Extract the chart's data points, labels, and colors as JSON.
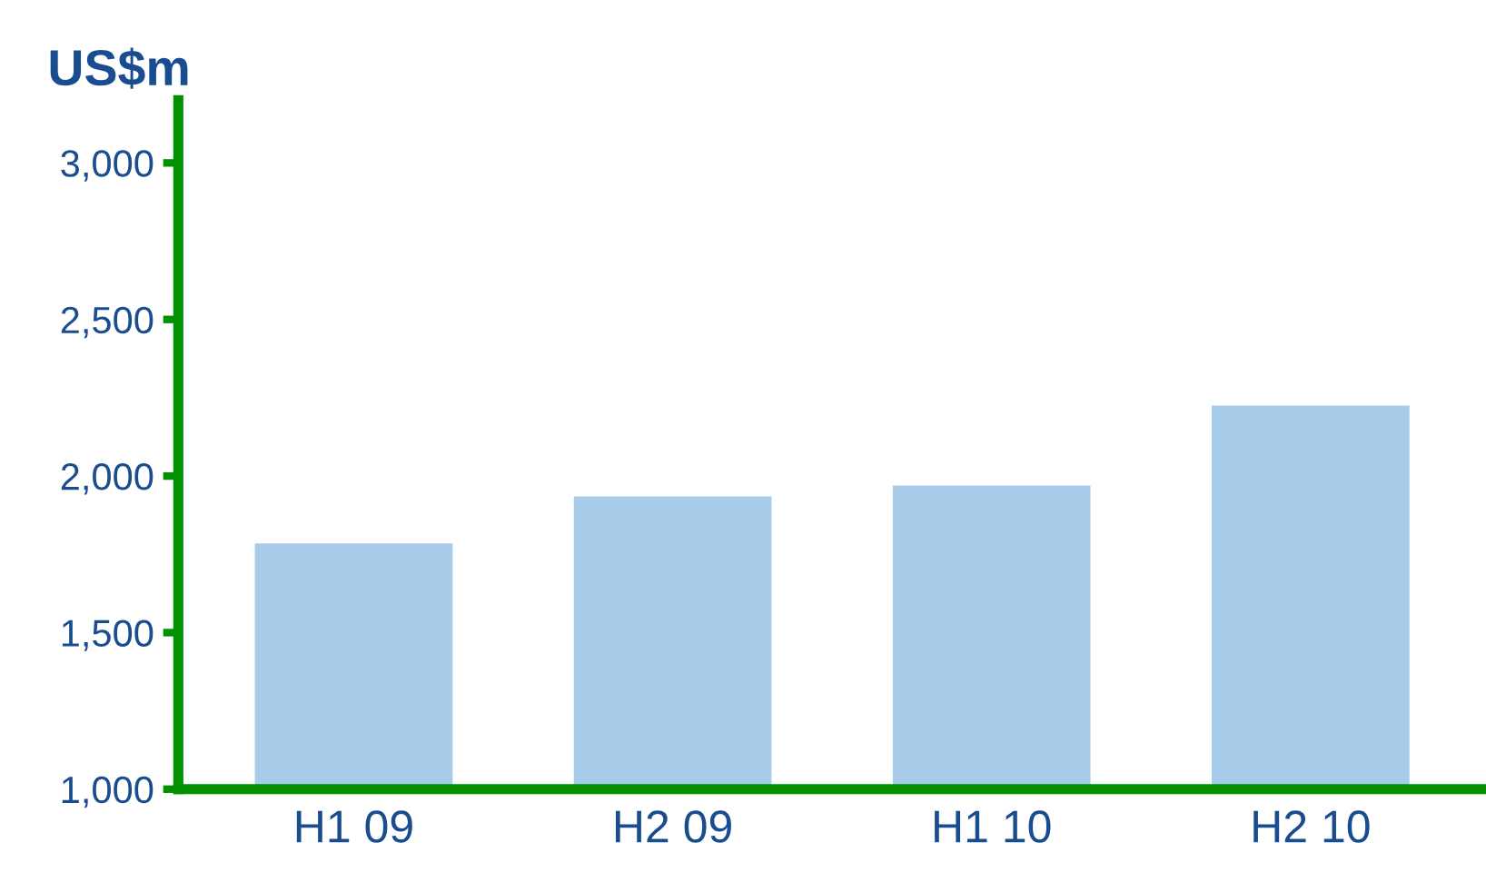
{
  "chart_data": {
    "type": "bar",
    "ylabel": "US$m",
    "categories": [
      "H1 09",
      "H2 09",
      "H1 10",
      "H2 10"
    ],
    "values": [
      1785,
      1935,
      1970,
      2225
    ],
    "color": "#a8cbea",
    "ylim": [
      1000,
      3200
    ],
    "yticks": [
      {
        "value": 1000,
        "label": "1,000"
      },
      {
        "value": 1500,
        "label": "1,500"
      },
      {
        "value": 2000,
        "label": "2,000"
      },
      {
        "value": 2500,
        "label": "2,500"
      },
      {
        "value": 3000,
        "label": "3,000"
      }
    ],
    "grid": false,
    "legend": false
  }
}
